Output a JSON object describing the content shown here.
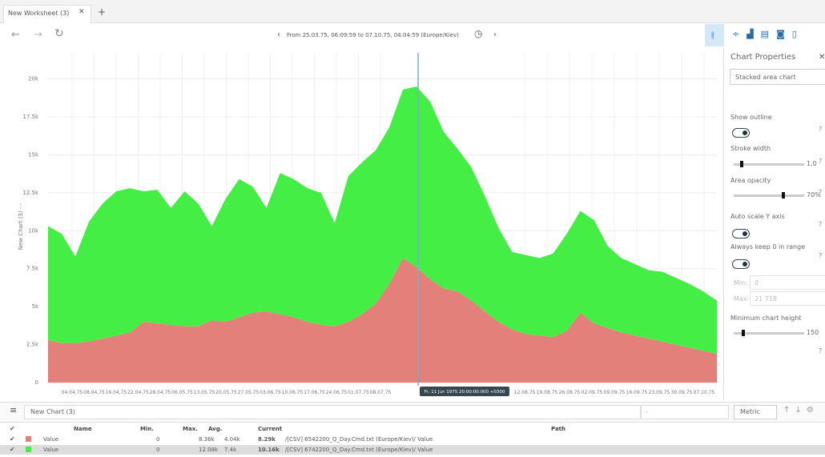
{
  "tab": {
    "title": "New Worksheet (3)"
  },
  "toolbar": {
    "range": "From 25.03.75, 06:09:59 to 07.10.75, 04:04:59 (Europe/Kiev)"
  },
  "chart_data": {
    "type": "area",
    "stacked": true,
    "ylabel": "New Chart (3) - -",
    "xticks": [
      "04.04.75",
      "08.04.75",
      "16.04.75",
      "22.04.75",
      "28.04.75",
      "06.05.75",
      "13.05.75",
      "20.05.75",
      "27.05.75",
      "03.06.75",
      "10.06.75",
      "17.06.75",
      "24.06.75",
      "01.07.75",
      "08.07.75",
      "12.08.75",
      "19.08.75",
      "26.08.75",
      "02.09.75",
      "09.09.75",
      "16.09.75",
      "23.09.75",
      "30.09.75",
      "07.10.75"
    ],
    "series": [
      {
        "color": "#e38079",
        "values": [
          2800,
          2600,
          2600,
          2700,
          2900,
          3100,
          3300,
          4000,
          3900,
          3800,
          3700,
          3700,
          4100,
          4000,
          4300,
          4600,
          4700,
          4500,
          4300,
          4000,
          3800,
          3700,
          4000,
          4500,
          5200,
          6500,
          8200,
          7600,
          6800,
          6200,
          6000,
          5400,
          4700,
          4000,
          3500,
          3200,
          3100,
          3000,
          3400,
          4600,
          3900,
          3600,
          3300,
          3100,
          2900,
          2700,
          2500,
          2300,
          2100,
          1900
        ]
      },
      {
        "color": "#44ee44",
        "values": [
          7500,
          7200,
          5700,
          7900,
          8900,
          9500,
          9500,
          8600,
          8800,
          7700,
          8900,
          8100,
          6200,
          8100,
          9100,
          8300,
          6800,
          9300,
          9100,
          8800,
          8700,
          6800,
          9600,
          10000,
          10100,
          10300,
          11100,
          11900,
          11700,
          10300,
          9400,
          8800,
          7600,
          6200,
          5100,
          5200,
          5100,
          5500,
          6400,
          6700,
          6800,
          5400,
          4900,
          4700,
          4500,
          4600,
          4400,
          4200,
          3900,
          3500
        ]
      }
    ],
    "ylim": [
      0,
      21718
    ],
    "yticks": [
      0,
      {
        "value": 2500,
        "label": "2.5k"
      },
      {
        "value": 5000,
        "label": "5k"
      },
      {
        "value": 7500,
        "label": "7.5k"
      },
      {
        "value": 10000,
        "label": "10k"
      },
      {
        "value": 12500,
        "label": "12.5k"
      },
      {
        "value": 15000,
        "label": "15k"
      },
      {
        "value": 17500,
        "label": "17.5k"
      },
      {
        "value": 20000,
        "label": "20k"
      }
    ],
    "grid": true,
    "tooltip": "Fr, 11 Jun 1975 20:00:00.000 +0300"
  },
  "properties": {
    "title": "Chart Properties",
    "chart_type": "Stacked area chart",
    "show_outline": "Show outline",
    "stroke_width": "Stroke width",
    "stroke_width_value": "1,0",
    "area_opacity": "Area opacity",
    "area_opacity_value": "70%",
    "auto_scale": "Auto scale Y axis",
    "keep_zero": "Always keep 0 in range",
    "min_label": "Min:",
    "min_value": "0",
    "max_label": "Max:",
    "max_value": "21 718",
    "min_height": "Minimum chart height",
    "min_height_value": "150"
  },
  "legend_bar": {
    "chart_name": "New Chart (3)",
    "unit": "-",
    "metric": "Metric"
  },
  "table": {
    "columns": [
      "Name",
      "Min.",
      "Max.",
      "Avg.",
      "Current",
      "Path"
    ],
    "rows": [
      [
        "Value",
        "0",
        "8.36k",
        "4.04k",
        "8.29k",
        "/[CSV] 6542200_Q_Day.Cmd.txt (Europe/Kiev)/ Value"
      ],
      [
        "Value",
        "0",
        "12.08k",
        "7.4k",
        "10.16k",
        "/[CSV] 6742200_Q_Day.Cmd.txt (Europe/Kiev)/ Value"
      ]
    ]
  }
}
